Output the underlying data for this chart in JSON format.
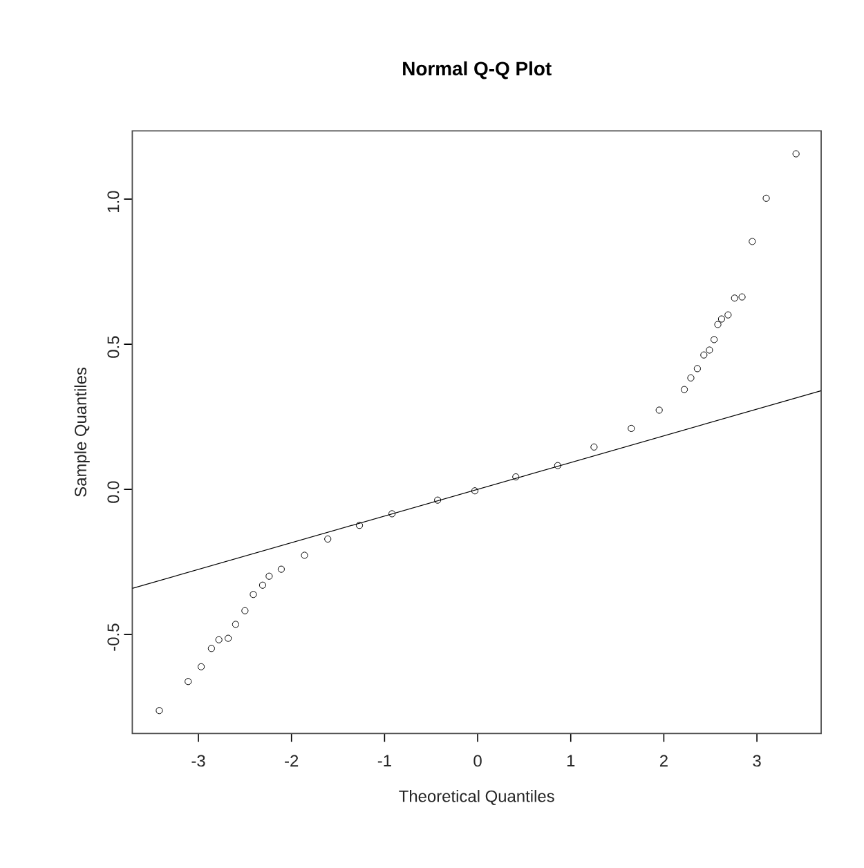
{
  "chart_data": {
    "type": "scatter",
    "title": "Normal Q-Q Plot",
    "xlabel": "Theoretical Quantiles",
    "ylabel": "Sample Quantiles",
    "xlim": [
      -3.71,
      3.69
    ],
    "ylim": [
      -0.841,
      1.235
    ],
    "xticks": [
      -3,
      -2,
      -1,
      0,
      1,
      2,
      3
    ],
    "yticks": [
      {
        "value": -0.5,
        "label": "-0.5"
      },
      {
        "value": 0,
        "label": "0.0"
      },
      {
        "value": 0.5,
        "label": "0.5"
      },
      {
        "value": 1,
        "label": "1.0"
      }
    ],
    "series": [
      {
        "color": "#000000",
        "marker": "circle",
        "x": [
          -3.42,
          -3.11,
          -2.97,
          -2.86,
          -2.78,
          -2.68,
          -2.6,
          -2.5,
          -2.41,
          -2.31,
          -2.24,
          -2.11,
          -1.86,
          -1.61,
          -1.27,
          -0.92,
          -0.43,
          -0.03,
          0.41,
          0.86,
          1.25,
          1.65,
          1.95,
          2.22,
          2.29,
          2.36,
          2.43,
          2.49,
          2.54,
          2.58,
          2.62,
          2.69,
          2.76,
          2.84,
          2.95,
          3.1,
          3.42
        ],
        "values": [
          -0.762,
          -0.662,
          -0.611,
          -0.548,
          -0.518,
          -0.513,
          -0.465,
          -0.418,
          -0.362,
          -0.33,
          -0.299,
          -0.275,
          -0.227,
          -0.171,
          -0.124,
          -0.084,
          -0.037,
          -0.005,
          0.043,
          0.082,
          0.146,
          0.21,
          0.273,
          0.344,
          0.384,
          0.416,
          0.463,
          0.48,
          0.516,
          0.568,
          0.587,
          0.601,
          0.659,
          0.663,
          0.854,
          1.003,
          1.156
        ]
      },
      {
        "type": "line",
        "color": "#000000",
        "marker": "none",
        "line_style": "solid",
        "x": [
          -3.71,
          3.69
        ],
        "values": [
          -0.341,
          0.34
        ]
      }
    ]
  }
}
